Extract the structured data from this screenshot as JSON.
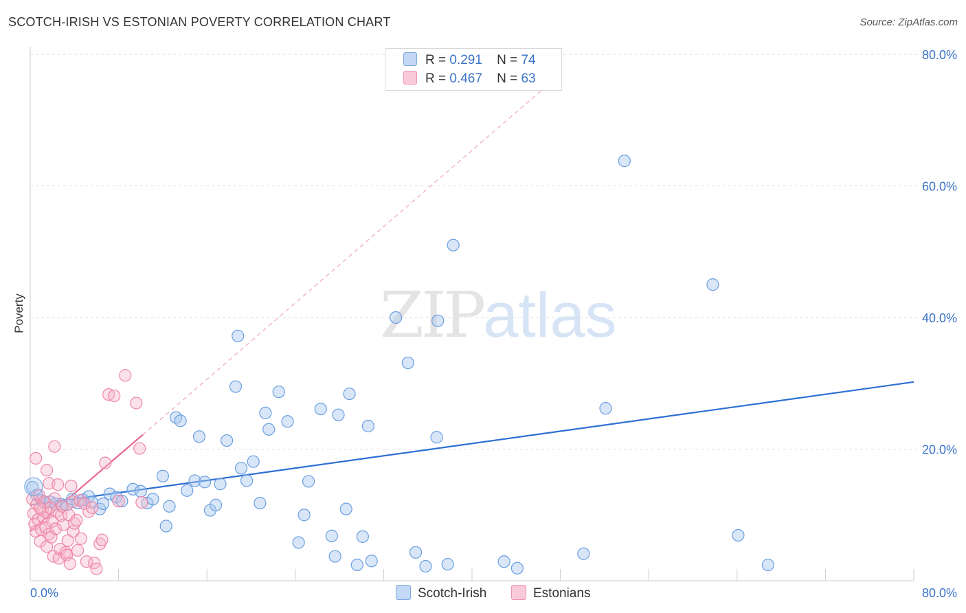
{
  "title": "SCOTCH-IRISH VS ESTONIAN POVERTY CORRELATION CHART",
  "source": "Source: ZipAtlas.com",
  "watermark": {
    "zip": "ZIP",
    "atlas": "atlas"
  },
  "legend": {
    "rows": [
      {
        "r_label": "R =",
        "r_value": "0.291",
        "n_label": "N =",
        "n_value": "74"
      },
      {
        "r_label": "R =",
        "r_value": "0.467",
        "n_label": "N =",
        "n_value": "63"
      }
    ]
  },
  "colors": {
    "blue_fill": "#a9c8f0",
    "blue_stroke": "#6a9ee0",
    "blue_line": "#2d6fd2",
    "pink_fill": "#f6b3c8",
    "pink_stroke": "#ee87a8",
    "pink_line": "#e8668f",
    "grid": "#dddddd",
    "tick_text": "#3a73c8"
  },
  "chart_data": {
    "type": "scatter",
    "title": "SCOTCH-IRISH VS ESTONIAN POVERTY CORRELATION CHART",
    "xlabel": "",
    "ylabel": "Poverty",
    "xlim": [
      0,
      80
    ],
    "ylim": [
      0,
      80
    ],
    "x_tick_labels": [
      "0.0%",
      "80.0%"
    ],
    "y_tick_labels": [
      "20.0%",
      "40.0%",
      "60.0%",
      "80.0%"
    ],
    "y_ticks": [
      20,
      40,
      60,
      80
    ],
    "x_minor_ticks": [
      0,
      8,
      16,
      24,
      32,
      40,
      48,
      56,
      64,
      72,
      80
    ],
    "series": [
      {
        "name": "Scotch-Irish",
        "r": 0.291,
        "n": 74,
        "trend": {
          "x": [
            0,
            80
          ],
          "y": [
            11.5,
            30.2
          ]
        },
        "points": [
          [
            0.2,
            14.2
          ],
          [
            0.6,
            13.0
          ],
          [
            1.0,
            12.2
          ],
          [
            1.4,
            11.8
          ],
          [
            1.8,
            12.0
          ],
          [
            2.3,
            11.7
          ],
          [
            2.8,
            11.6
          ],
          [
            3.3,
            11.5
          ],
          [
            3.8,
            12.4
          ],
          [
            4.3,
            11.8
          ],
          [
            4.8,
            12.3
          ],
          [
            5.3,
            12.8
          ],
          [
            5.6,
            11.9
          ],
          [
            6.3,
            10.9
          ],
          [
            6.6,
            11.7
          ],
          [
            7.2,
            13.2
          ],
          [
            7.8,
            12.7
          ],
          [
            8.3,
            12.1
          ],
          [
            9.3,
            13.9
          ],
          [
            10.0,
            13.6
          ],
          [
            10.6,
            11.8
          ],
          [
            11.1,
            12.4
          ],
          [
            12.0,
            15.9
          ],
          [
            12.3,
            8.3
          ],
          [
            12.6,
            11.3
          ],
          [
            13.2,
            24.8
          ],
          [
            13.6,
            24.3
          ],
          [
            14.2,
            13.7
          ],
          [
            14.9,
            15.2
          ],
          [
            15.3,
            21.9
          ],
          [
            15.8,
            15.0
          ],
          [
            16.3,
            10.7
          ],
          [
            16.8,
            11.5
          ],
          [
            17.2,
            14.7
          ],
          [
            17.8,
            21.3
          ],
          [
            18.6,
            29.5
          ],
          [
            18.8,
            37.2
          ],
          [
            19.1,
            17.1
          ],
          [
            19.6,
            15.2
          ],
          [
            20.2,
            18.1
          ],
          [
            20.8,
            11.8
          ],
          [
            21.3,
            25.5
          ],
          [
            21.6,
            23.0
          ],
          [
            22.5,
            28.7
          ],
          [
            23.3,
            24.2
          ],
          [
            24.3,
            5.8
          ],
          [
            24.8,
            10.0
          ],
          [
            25.2,
            15.1
          ],
          [
            26.3,
            26.1
          ],
          [
            27.3,
            6.8
          ],
          [
            27.6,
            3.7
          ],
          [
            27.9,
            25.2
          ],
          [
            28.6,
            10.9
          ],
          [
            28.9,
            28.4
          ],
          [
            29.6,
            2.4
          ],
          [
            30.1,
            6.7
          ],
          [
            30.6,
            23.5
          ],
          [
            30.9,
            3.0
          ],
          [
            33.1,
            40.0
          ],
          [
            34.2,
            33.1
          ],
          [
            34.9,
            4.3
          ],
          [
            35.8,
            2.2
          ],
          [
            36.8,
            21.8
          ],
          [
            36.9,
            39.5
          ],
          [
            37.8,
            2.5
          ],
          [
            38.3,
            51.0
          ],
          [
            42.9,
            2.9
          ],
          [
            44.1,
            1.9
          ],
          [
            50.1,
            4.1
          ],
          [
            52.1,
            26.2
          ],
          [
            53.8,
            63.8
          ],
          [
            61.8,
            45.0
          ],
          [
            64.1,
            6.9
          ],
          [
            66.8,
            2.4
          ]
        ]
      },
      {
        "name": "Estonians",
        "r": 0.467,
        "n": 63,
        "trend": {
          "x": [
            0,
            10.2
          ],
          "y": [
            7.5,
            22.2
          ]
        },
        "trend_extension": {
          "x": [
            10.2,
            48
          ],
          "y": [
            22.2,
            77
          ]
        },
        "points": [
          [
            0.2,
            12.4
          ],
          [
            0.3,
            10.2
          ],
          [
            0.4,
            8.6
          ],
          [
            0.5,
            7.5
          ],
          [
            0.6,
            11.6
          ],
          [
            0.7,
            9.3
          ],
          [
            0.8,
            13.0
          ],
          [
            0.9,
            6.0
          ],
          [
            1.0,
            7.8
          ],
          [
            1.1,
            10.7
          ],
          [
            1.2,
            9.6
          ],
          [
            1.3,
            12.0
          ],
          [
            1.4,
            8.1
          ],
          [
            1.5,
            5.2
          ],
          [
            1.6,
            10.3
          ],
          [
            1.7,
            7.1
          ],
          [
            1.8,
            11.1
          ],
          [
            1.9,
            6.6
          ],
          [
            2.0,
            9.0
          ],
          [
            2.1,
            3.7
          ],
          [
            2.2,
            12.5
          ],
          [
            2.3,
            7.9
          ],
          [
            2.4,
            10.5
          ],
          [
            2.6,
            3.4
          ],
          [
            2.7,
            4.8
          ],
          [
            2.8,
            9.9
          ],
          [
            2.9,
            11.3
          ],
          [
            3.0,
            8.5
          ],
          [
            3.2,
            4.3
          ],
          [
            3.3,
            3.9
          ],
          [
            3.4,
            6.1
          ],
          [
            3.5,
            10.0
          ],
          [
            3.6,
            2.6
          ],
          [
            3.7,
            14.4
          ],
          [
            3.8,
            12.0
          ],
          [
            3.9,
            7.5
          ],
          [
            4.0,
            8.7
          ],
          [
            4.2,
            9.2
          ],
          [
            4.3,
            4.6
          ],
          [
            4.5,
            12.2
          ],
          [
            4.6,
            6.4
          ],
          [
            4.9,
            11.7
          ],
          [
            5.1,
            2.9
          ],
          [
            5.3,
            10.5
          ],
          [
            5.6,
            11.1
          ],
          [
            5.8,
            2.7
          ],
          [
            6.0,
            1.8
          ],
          [
            6.3,
            5.6
          ],
          [
            6.5,
            6.2
          ],
          [
            6.8,
            17.9
          ],
          [
            7.1,
            28.3
          ],
          [
            7.6,
            28.1
          ],
          [
            8.0,
            12.1
          ],
          [
            8.6,
            31.2
          ],
          [
            9.6,
            27.0
          ],
          [
            9.9,
            20.1
          ],
          [
            10.1,
            11.9
          ],
          [
            0.5,
            18.6
          ],
          [
            1.5,
            16.8
          ],
          [
            1.7,
            14.8
          ],
          [
            2.2,
            20.4
          ],
          [
            2.5,
            14.6
          ],
          [
            0.9,
            11.0
          ]
        ]
      }
    ]
  }
}
